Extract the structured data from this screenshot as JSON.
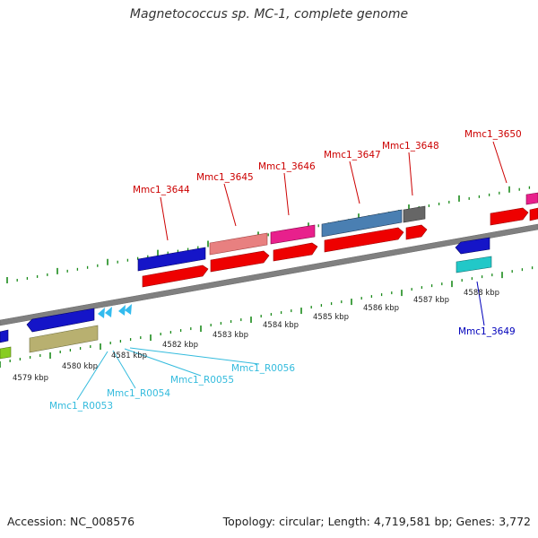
{
  "title": "Magnetococcus sp. MC-1, complete genome",
  "footer": {
    "accession": "Accession: NC_008576",
    "summary": "Topology: circular; Length: 4,719,581 bp; Genes: 3,772"
  },
  "colors": {
    "forward_label": "#cc0000",
    "reverse_label": "#0000bb",
    "rna_label": "#33bbdd",
    "backbone": "#888888",
    "ticks": "#1a8a1a"
  },
  "scale_labels": [
    "4579 kbp",
    "4580 kbp",
    "4581 kbp",
    "4582 kbp",
    "4583 kbp",
    "4584 kbp",
    "4585 kbp",
    "4586 kbp",
    "4587 kbp",
    "4588 kbp"
  ],
  "forward_genes": [
    "Mmc1_3644",
    "Mmc1_3645",
    "Mmc1_3646",
    "Mmc1_3647",
    "Mmc1_3648",
    "Mmc1_3650"
  ],
  "reverse_genes": [
    "Mmc1_3649"
  ],
  "rna_genes": [
    "Mmc1_R0053",
    "Mmc1_R0054",
    "Mmc1_R0055",
    "Mmc1_R0056"
  ]
}
